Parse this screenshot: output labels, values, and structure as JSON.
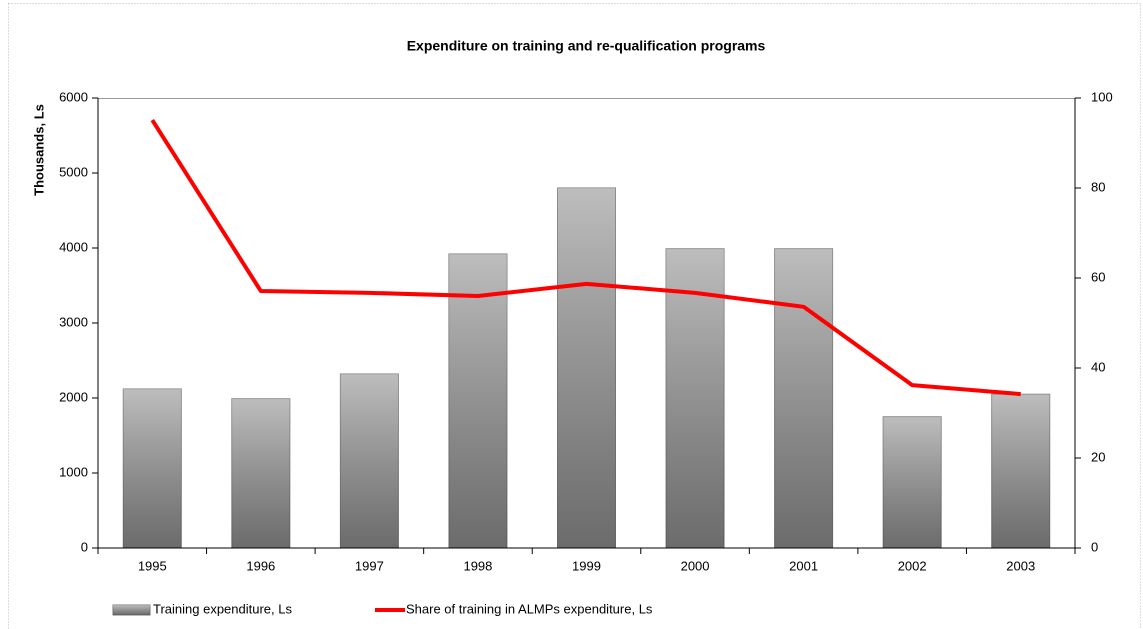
{
  "chart_data": {
    "type": "bar",
    "title": "Expenditure on training and re-qualification programs",
    "y_label": "Thousands, Ls",
    "categories": [
      "1995",
      "1996",
      "1997",
      "1998",
      "1999",
      "2000",
      "2001",
      "2002",
      "2003"
    ],
    "series": [
      {
        "name": "Training expenditure, Ls",
        "type": "bar",
        "color": "#9a9a9a",
        "values": [
          2120,
          1990,
          2320,
          3920,
          4800,
          3990,
          3990,
          1750,
          2050
        ]
      },
      {
        "name": "Share of training in ALMPs expenditure, Ls",
        "type": "line",
        "axis": "y2",
        "color": "#ff0000",
        "values": [
          95.1,
          57.1,
          56.7,
          56,
          58.7,
          56.7,
          53.6,
          36.2,
          34.2
        ]
      }
    ],
    "ylim": [
      0,
      6000
    ],
    "yticks": [
      0,
      1000,
      2000,
      3000,
      4000,
      5000,
      6000
    ],
    "y2lim": [
      0,
      100
    ],
    "y2ticks": [
      0,
      20,
      40,
      60,
      80,
      100
    ],
    "grid": false,
    "legend": "bottom"
  }
}
